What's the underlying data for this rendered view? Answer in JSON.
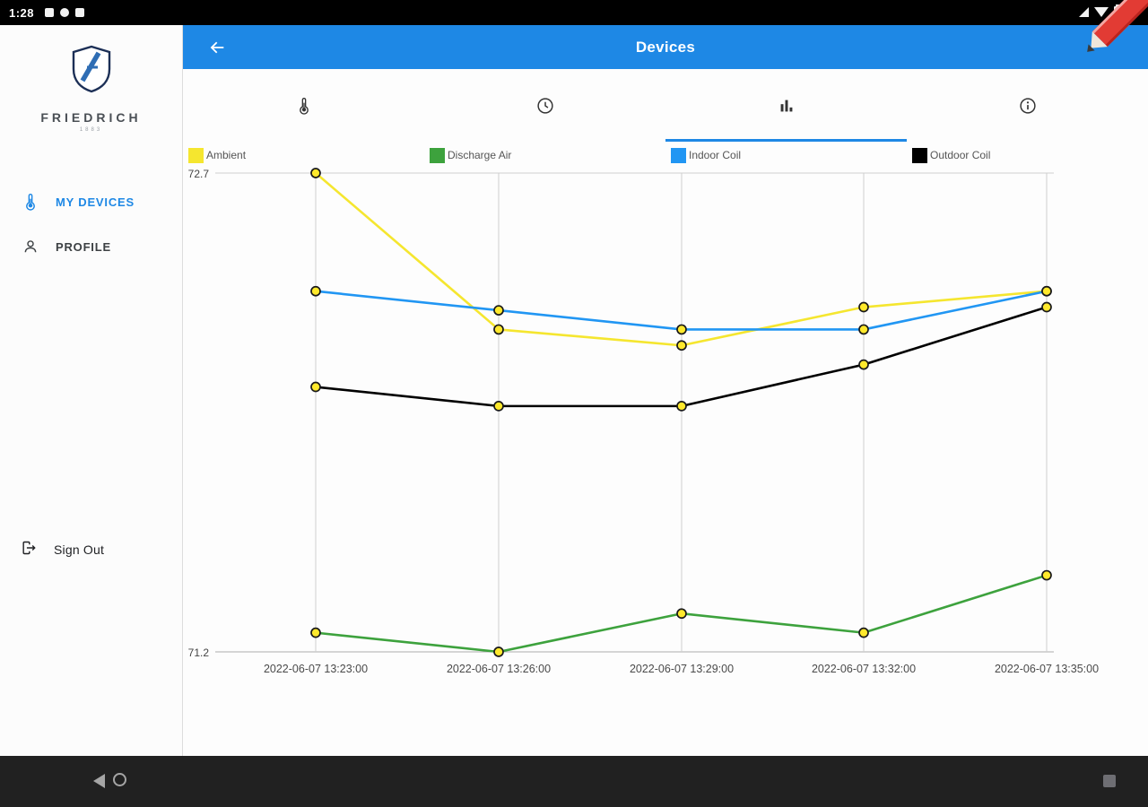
{
  "status_bar": {
    "time": "1:28",
    "notification_icons": [
      "app-icon",
      "app-icon",
      "app-icon"
    ],
    "system_icons": [
      "signal-icon",
      "wifi-icon",
      "battery-icon"
    ]
  },
  "decoration": {
    "corner_pencil_color": "#e23b34"
  },
  "sidebar": {
    "brand": "FRIEDRICH",
    "brand_sub": "1883",
    "items": [
      {
        "label": "MY DEVICES",
        "icon": "thermometer-icon",
        "active": true
      },
      {
        "label": "PROFILE",
        "icon": "person-icon",
        "active": false
      }
    ],
    "sign_out_label": "Sign Out",
    "accent_color": "#1E88E5"
  },
  "app_bar": {
    "title": "Devices",
    "back_icon": "arrow-left-icon",
    "color": "#1E88E5"
  },
  "tabs": [
    {
      "icon": "thermometer-icon",
      "active": false
    },
    {
      "icon": "clock-icon",
      "active": false
    },
    {
      "icon": "bar-chart-icon",
      "active": true
    },
    {
      "icon": "info-icon",
      "active": false
    }
  ],
  "chart_data": {
    "type": "line",
    "title": "",
    "x": [
      "2022-06-07 13:23:00",
      "2022-06-07 13:26:00",
      "2022-06-07 13:29:00",
      "2022-06-07 13:32:00",
      "2022-06-07 13:35:00"
    ],
    "series": [
      {
        "name": "Ambient",
        "color": "#F5E62F",
        "values": [
          72.7,
          72.21,
          72.16,
          72.28,
          72.33
        ]
      },
      {
        "name": "Discharge Air",
        "color": "#3DA23D",
        "values": [
          71.26,
          71.2,
          71.32,
          71.26,
          71.44
        ]
      },
      {
        "name": "Indoor Coil",
        "color": "#2196F3",
        "values": [
          72.33,
          72.27,
          72.21,
          72.21,
          72.33
        ]
      },
      {
        "name": "Outdoor Coil",
        "color": "#000000",
        "values": [
          72.03,
          71.97,
          71.97,
          72.1,
          72.28
        ]
      }
    ],
    "ylim": [
      71.2,
      72.7
    ],
    "y_tick_labels": [
      "72.7",
      "71.2"
    ],
    "point_style": {
      "fill": "#FFE92C",
      "stroke": "#1a1a1a"
    },
    "grid": {
      "vertical": true,
      "horizontal_top": true,
      "horizontal_bottom": true
    },
    "legend_position": "top"
  },
  "nav_bar": {
    "icons": [
      "back",
      "home",
      "recents"
    ]
  }
}
